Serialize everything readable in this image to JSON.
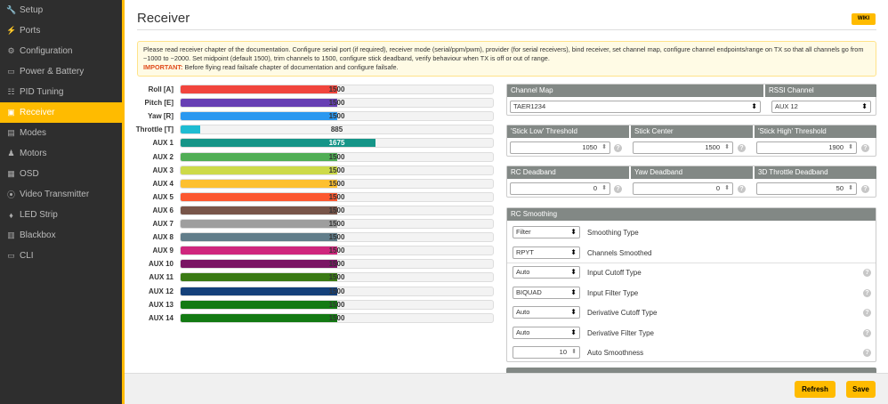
{
  "sidebar": {
    "items": [
      {
        "label": "Setup",
        "icon": "wrench-icon",
        "glyph": "🔧"
      },
      {
        "label": "Ports",
        "icon": "plug-icon",
        "glyph": "⚡"
      },
      {
        "label": "Configuration",
        "icon": "gear-icon",
        "glyph": "⚙"
      },
      {
        "label": "Power & Battery",
        "icon": "battery-icon",
        "glyph": "▭"
      },
      {
        "label": "PID Tuning",
        "icon": "sitemap-icon",
        "glyph": "☷"
      },
      {
        "label": "Receiver",
        "icon": "receiver-icon",
        "glyph": "▣"
      },
      {
        "label": "Modes",
        "icon": "modes-icon",
        "glyph": "▤"
      },
      {
        "label": "Motors",
        "icon": "motor-icon",
        "glyph": "♟"
      },
      {
        "label": "OSD",
        "icon": "osd-icon",
        "glyph": "▦"
      },
      {
        "label": "Video Transmitter",
        "icon": "antenna-icon",
        "glyph": "⦿"
      },
      {
        "label": "LED Strip",
        "icon": "led-icon",
        "glyph": "♦"
      },
      {
        "label": "Blackbox",
        "icon": "blackbox-icon",
        "glyph": "▥"
      },
      {
        "label": "CLI",
        "icon": "terminal-icon",
        "glyph": "▭"
      }
    ],
    "active_index": 5
  },
  "header": {
    "title": "Receiver",
    "wiki": "WIKI"
  },
  "notice": {
    "text": "Please read receiver chapter of the documentation. Configure serial port (if required), receiver mode (serial/ppm/pwm), provider (for serial receivers), bind receiver, set channel map, configure channel endpoints/range on TX so that all channels go from ~1000 to ~2000. Set midpoint (default 1500), trim channels to 1500, configure stick deadband, verify behaviour when TX is off or out of range.",
    "important_label": "IMPORTANT:",
    "important_text": " Before flying read failsafe chapter of documentation and configure failsafe."
  },
  "channels": [
    {
      "label": "Roll [A]",
      "value": "1500",
      "level": 0.5,
      "color": "#f1453d"
    },
    {
      "label": "Pitch [E]",
      "value": "1500",
      "level": 0.5,
      "color": "#673fb4"
    },
    {
      "label": "Yaw [R]",
      "value": "1500",
      "level": 0.5,
      "color": "#2b98f0"
    },
    {
      "label": "Throttle [T]",
      "value": "885",
      "level": 0.0625,
      "color": "#1fbcd2"
    },
    {
      "label": "AUX 1",
      "value": "1675",
      "level": 0.625,
      "color": "#159588"
    },
    {
      "label": "AUX 2",
      "value": "1500",
      "level": 0.5,
      "color": "#50ae55"
    },
    {
      "label": "AUX 3",
      "value": "1500",
      "level": 0.5,
      "color": "#cdda49"
    },
    {
      "label": "AUX 4",
      "value": "1500",
      "level": 0.5,
      "color": "#fdc02f"
    },
    {
      "label": "AUX 5",
      "value": "1500",
      "level": 0.5,
      "color": "#fc5830"
    },
    {
      "label": "AUX 6",
      "value": "1500",
      "level": 0.5,
      "color": "#785549"
    },
    {
      "label": "AUX 7",
      "value": "1500",
      "level": 0.5,
      "color": "#9e9e9e"
    },
    {
      "label": "AUX 8",
      "value": "1500",
      "level": 0.5,
      "color": "#617d8a"
    },
    {
      "label": "AUX 9",
      "value": "1500",
      "level": 0.5,
      "color": "#cf267d"
    },
    {
      "label": "AUX 10",
      "value": "1500",
      "level": 0.5,
      "color": "#7a1464"
    },
    {
      "label": "AUX 11",
      "value": "1500",
      "level": 0.5,
      "color": "#3a7a14"
    },
    {
      "label": "AUX 12",
      "value": "1500",
      "level": 0.5,
      "color": "#14407a"
    },
    {
      "label": "AUX 13",
      "value": "1500",
      "level": 0.5,
      "color": "#137a13"
    },
    {
      "label": "AUX 14",
      "value": "1500",
      "level": 0.5,
      "color": "#137a13"
    }
  ],
  "channel_map": {
    "label": "Channel Map",
    "value": "TAER1234"
  },
  "rssi": {
    "label": "RSSI Channel",
    "value": "AUX 12"
  },
  "thresholds": {
    "low_label": "'Stick Low' Threshold",
    "low_value": "1050",
    "center_label": "Stick Center",
    "center_value": "1500",
    "high_label": "'Stick High' Threshold",
    "high_value": "1900"
  },
  "deadband": {
    "rc_label": "RC Deadband",
    "rc_value": "0",
    "yaw_label": "Yaw Deadband",
    "yaw_value": "0",
    "throttle3d_label": "3D Throttle Deadband",
    "throttle3d_value": "50"
  },
  "smoothing": {
    "title": "RC Smoothing",
    "rows": [
      {
        "value": "Filter",
        "label": "Smoothing Type",
        "help": false
      },
      {
        "value": "RPYT",
        "label": "Channels Smoothed",
        "help": false
      },
      {
        "value": "Auto",
        "label": "Input Cutoff Type",
        "help": true
      },
      {
        "value": "BIQUAD",
        "label": "Input Filter Type",
        "help": true
      },
      {
        "value": "Auto",
        "label": "Derivative Cutoff Type",
        "help": true
      },
      {
        "value": "Auto",
        "label": "Derivative Filter Type",
        "help": true
      },
      {
        "value": "10",
        "label": "Auto Smoothness",
        "help": true
      }
    ]
  },
  "footer": {
    "refresh": "Refresh",
    "save": "Save"
  }
}
